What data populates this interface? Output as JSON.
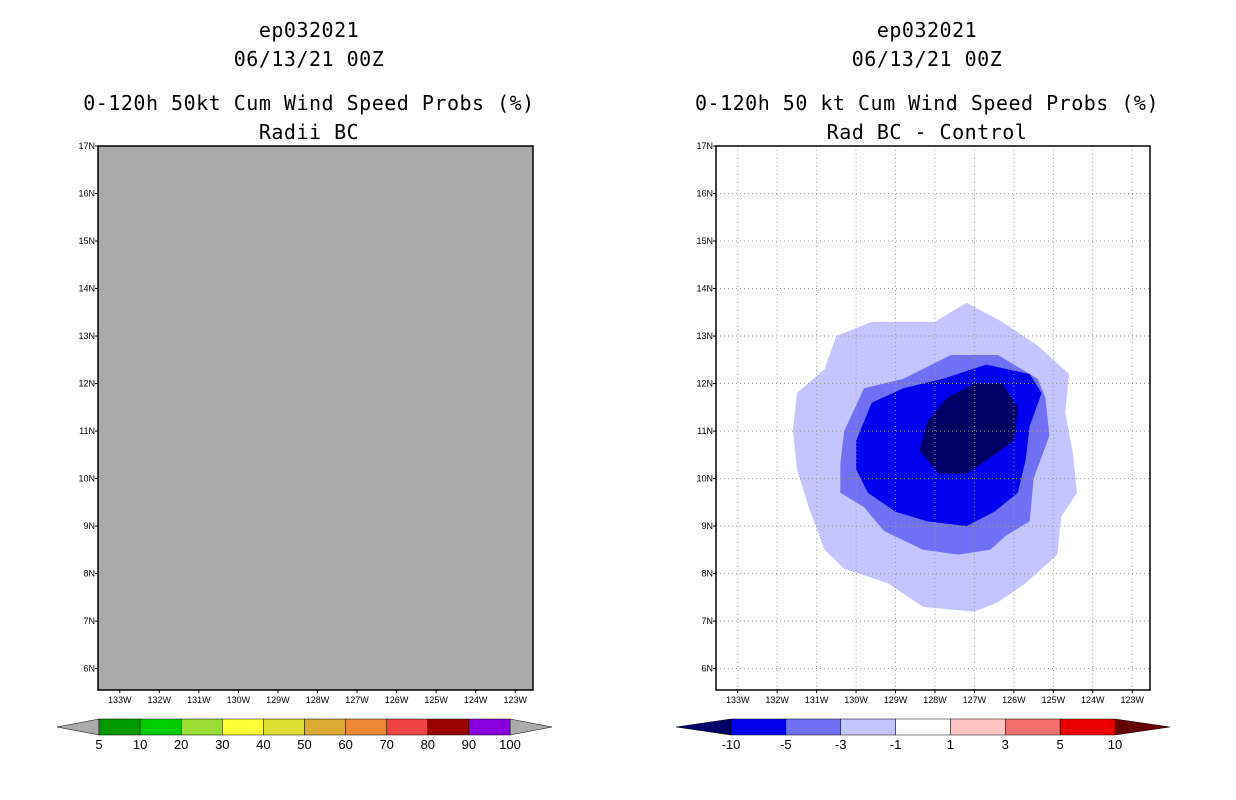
{
  "panels": {
    "left": {
      "storm": "ep032021",
      "date": "06/13/21 00Z",
      "title": "0-120h 50kt Cum Wind Speed Probs (%)",
      "subtitle": "Radii BC"
    },
    "right": {
      "storm": "ep032021",
      "date": "06/13/21 00Z",
      "title": "0-120h 50 kt Cum Wind Speed Probs (%)",
      "subtitle": "Rad BC - Control"
    }
  },
  "chart_data": [
    {
      "type": "heatmap",
      "title": "0-120h 50kt Cum Wind Speed Probs (%)",
      "subtitle": "Radii BC",
      "field_fill_color": "#aaaaaa",
      "field_note": "uniform field, no probabilities above 5%",
      "lat_ticks": [
        "6N",
        "7N",
        "8N",
        "9N",
        "10N",
        "11N",
        "12N",
        "13N",
        "14N",
        "15N",
        "16N",
        "17N"
      ],
      "lon_ticks": [
        "133W",
        "132W",
        "131W",
        "130W",
        "129W",
        "128W",
        "127W",
        "126W",
        "125W",
        "124W",
        "123W"
      ],
      "lat_range": [
        5.55,
        17
      ],
      "lon_range": [
        133.55,
        122.55
      ],
      "grid": false,
      "colorbar": {
        "labels": [
          "5",
          "10",
          "20",
          "30",
          "40",
          "50",
          "60",
          "70",
          "80",
          "90",
          "100"
        ],
        "colors": [
          "#009900",
          "#00cc00",
          "#99dd33",
          "#ffff33",
          "#dddd33",
          "#ddaa33",
          "#ee8833",
          "#ee4444",
          "#990000",
          "#8800dd"
        ],
        "under_color": "#aaaaaa",
        "over_color": "#aaaaaa"
      }
    },
    {
      "type": "heatmap",
      "title": "0-120h 50 kt Cum Wind Speed Probs (%)",
      "subtitle": "Rad BC - Control",
      "lat_ticks": [
        "6N",
        "7N",
        "8N",
        "9N",
        "10N",
        "11N",
        "12N",
        "13N",
        "14N",
        "15N",
        "16N",
        "17N"
      ],
      "lon_ticks": [
        "133W",
        "132W",
        "131W",
        "130W",
        "129W",
        "128W",
        "127W",
        "126W",
        "125W",
        "124W",
        "123W"
      ],
      "lat_range": [
        5.55,
        17
      ],
      "lon_range": [
        133.55,
        122.55
      ],
      "grid": true,
      "contours": [
        {
          "level": "-1 to -3",
          "color": "#c4c4ff",
          "points": [
            [
              131.6,
              11.0
            ],
            [
              131.5,
              11.8
            ],
            [
              130.8,
              12.3
            ],
            [
              130.5,
              13.0
            ],
            [
              129.6,
              13.3
            ],
            [
              128.0,
              13.3
            ],
            [
              127.2,
              13.7
            ],
            [
              126.3,
              13.3
            ],
            [
              125.4,
              12.8
            ],
            [
              124.6,
              12.2
            ],
            [
              124.7,
              11.4
            ],
            [
              124.5,
              10.5
            ],
            [
              124.4,
              9.7
            ],
            [
              124.8,
              9.2
            ],
            [
              124.9,
              8.4
            ],
            [
              125.7,
              7.8
            ],
            [
              126.4,
              7.4
            ],
            [
              127.0,
              7.2
            ],
            [
              128.3,
              7.3
            ],
            [
              129.2,
              7.8
            ],
            [
              130.3,
              8.1
            ],
            [
              130.8,
              8.5
            ],
            [
              131.2,
              9.4
            ],
            [
              131.5,
              10.2
            ]
          ]
        },
        {
          "level": "-3 to -5",
          "color": "#7070f4",
          "points": [
            [
              130.4,
              10.3
            ],
            [
              130.3,
              11.0
            ],
            [
              129.8,
              11.9
            ],
            [
              128.8,
              12.1
            ],
            [
              127.6,
              12.6
            ],
            [
              126.4,
              12.6
            ],
            [
              125.4,
              12.1
            ],
            [
              125.2,
              11.7
            ],
            [
              125.1,
              10.9
            ],
            [
              125.5,
              10.0
            ],
            [
              125.6,
              9.1
            ],
            [
              126.2,
              8.8
            ],
            [
              126.6,
              8.5
            ],
            [
              127.4,
              8.4
            ],
            [
              128.3,
              8.5
            ],
            [
              129.3,
              8.9
            ],
            [
              129.8,
              9.4
            ],
            [
              130.4,
              9.7
            ]
          ]
        },
        {
          "level": "-5 to -10",
          "color": "#0000ee",
          "points": [
            [
              130.0,
              10.8
            ],
            [
              129.6,
              11.6
            ],
            [
              128.8,
              11.9
            ],
            [
              127.8,
              12.1
            ],
            [
              126.7,
              12.4
            ],
            [
              125.6,
              12.2
            ],
            [
              125.3,
              11.8
            ],
            [
              125.6,
              11.1
            ],
            [
              125.7,
              10.4
            ],
            [
              125.9,
              9.7
            ],
            [
              126.5,
              9.3
            ],
            [
              127.2,
              9.0
            ],
            [
              128.2,
              9.1
            ],
            [
              129.0,
              9.3
            ],
            [
              129.7,
              9.7
            ],
            [
              130.0,
              10.2
            ]
          ]
        },
        {
          "level": "< -10",
          "color": "#000066",
          "points": [
            [
              128.4,
              10.6
            ],
            [
              128.2,
              11.2
            ],
            [
              127.7,
              11.7
            ],
            [
              127.0,
              12.0
            ],
            [
              126.3,
              12.0
            ],
            [
              125.9,
              11.5
            ],
            [
              126.0,
              10.8
            ],
            [
              126.5,
              10.5
            ],
            [
              127.2,
              10.1
            ],
            [
              127.9,
              10.1
            ]
          ]
        }
      ],
      "colorbar": {
        "labels": [
          "-10",
          "-5",
          "-3",
          "-1",
          "1",
          "3",
          "5",
          "10"
        ],
        "colors": [
          "#0000ee",
          "#7070f4",
          "#c4c4ff",
          "#ffffff",
          "#ffc4c4",
          "#f47070",
          "#ee0000"
        ],
        "under_color": "#000066",
        "over_color": "#660000"
      }
    }
  ]
}
